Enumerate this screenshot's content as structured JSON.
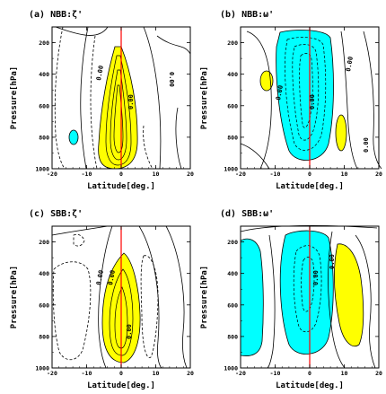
{
  "chart_data": [
    {
      "type": "contour",
      "title": "(a) NBB:ζ'",
      "xlabel": "Latitude[deg.]",
      "ylabel": "Pressure[hPa]",
      "xlim": [
        -20,
        20
      ],
      "ylim": [
        1000,
        100
      ],
      "xticks": [
        "-20",
        "-10",
        "0",
        "10",
        "20"
      ],
      "yticks": [
        "200",
        "400",
        "600",
        "800",
        "1000"
      ],
      "contour_labels": [
        "0.00",
        "0.00",
        "0.00"
      ],
      "fill_colors": {
        "positive": "#ffff00",
        "negative": "#00ffff"
      },
      "reference_line": {
        "x": 0,
        "color": "#ff0000"
      }
    },
    {
      "type": "contour",
      "title": "(b) NBB:ω'",
      "xlabel": "Latitude[deg.]",
      "ylabel": "Pressure[hPa]",
      "xlim": [
        -20,
        20
      ],
      "ylim": [
        1000,
        100
      ],
      "xticks": [
        "-20",
        "-10",
        "0",
        "10",
        "20"
      ],
      "yticks": [
        "200",
        "400",
        "600",
        "800",
        "1000"
      ],
      "contour_labels": [
        "0.00",
        "0.00",
        "0.00",
        "0.00"
      ],
      "fill_colors": {
        "positive": "#ffff00",
        "negative": "#00ffff"
      },
      "reference_line": {
        "x": 0,
        "color": "#ff0000"
      }
    },
    {
      "type": "contour",
      "title": "(c) SBB:ζ'",
      "xlabel": "Latitude[deg.]",
      "ylabel": "Pressure[hPa]",
      "xlim": [
        -20,
        20
      ],
      "ylim": [
        1000,
        100
      ],
      "xticks": [
        "-20",
        "-10",
        "0",
        "10",
        "20"
      ],
      "yticks": [
        "200",
        "400",
        "600",
        "800",
        "1000"
      ],
      "contour_labels": [
        "0.00",
        "0.00",
        "0.00"
      ],
      "fill_colors": {
        "positive": "#ffff00",
        "negative": "#00ffff"
      },
      "reference_line": {
        "x": 0,
        "color": "#ff0000"
      }
    },
    {
      "type": "contour",
      "title": "(d) SBB:ω'",
      "xlabel": "Latitude[deg.]",
      "ylabel": "Pressure[hPa]",
      "xlim": [
        -20,
        20
      ],
      "ylim": [
        1000,
        100
      ],
      "xticks": [
        "-20",
        "-10",
        "0",
        "10",
        "20"
      ],
      "yticks": [
        "200",
        "400",
        "600",
        "800",
        "1000"
      ],
      "contour_labels": [
        "0.00",
        "0.00"
      ],
      "fill_colors": {
        "positive": "#ffff00",
        "negative": "#00ffff"
      },
      "reference_line": {
        "x": 0,
        "color": "#ff0000"
      }
    }
  ]
}
